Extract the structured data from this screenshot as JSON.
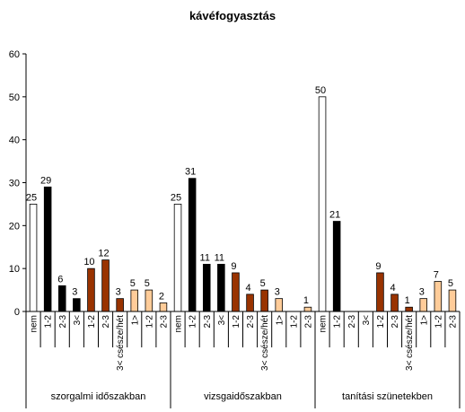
{
  "chart_data": {
    "type": "bar",
    "title": "kávéfogyasztás",
    "xlabel": "",
    "ylabel": "",
    "ylim": [
      0,
      60
    ],
    "yticks": [
      0,
      10,
      20,
      30,
      40,
      50,
      60
    ],
    "grid": false,
    "legend": "none",
    "groups": [
      {
        "label": "szorgalmi időszakban",
        "bars": [
          {
            "category": "nem",
            "value": 25,
            "color": "#ffffff"
          },
          {
            "category": "1-2",
            "value": 29,
            "color": "#000000"
          },
          {
            "category": "2-3",
            "value": 6,
            "color": "#000000"
          },
          {
            "category": "3<",
            "value": 3,
            "color": "#000000"
          },
          {
            "category": "1-2",
            "value": 10,
            "color": "#993300"
          },
          {
            "category": "2-3",
            "value": 12,
            "color": "#993300"
          },
          {
            "category": "3< csésze/hét",
            "value": 3,
            "color": "#993300"
          },
          {
            "category": "1>",
            "value": 5,
            "color": "#ffcc99"
          },
          {
            "category": "1-2",
            "value": 5,
            "color": "#ffcc99"
          },
          {
            "category": "2-3",
            "value": 2,
            "color": "#ffcc99"
          }
        ]
      },
      {
        "label": "vizsgaidőszakban",
        "bars": [
          {
            "category": "nem",
            "value": 25,
            "color": "#ffffff"
          },
          {
            "category": "1-2",
            "value": 31,
            "color": "#000000"
          },
          {
            "category": "2-3",
            "value": 11,
            "color": "#000000"
          },
          {
            "category": "3<",
            "value": 11,
            "color": "#000000"
          },
          {
            "category": "1-2",
            "value": 9,
            "color": "#993300"
          },
          {
            "category": "2-3",
            "value": 4,
            "color": "#993300"
          },
          {
            "category": "3< csésze/hét",
            "value": 5,
            "color": "#993300"
          },
          {
            "category": "1>",
            "value": 3,
            "color": "#ffcc99"
          },
          {
            "category": "1-2",
            "value": null,
            "color": "#ffcc99"
          },
          {
            "category": "2-3",
            "value": 1,
            "color": "#ffcc99"
          }
        ]
      },
      {
        "label": "tanítási szünetekben",
        "bars": [
          {
            "category": "nem",
            "value": 50,
            "color": "#ffffff"
          },
          {
            "category": "1-2",
            "value": 21,
            "color": "#000000"
          },
          {
            "category": "2-3",
            "value": null,
            "color": "#000000"
          },
          {
            "category": "3<",
            "value": null,
            "color": "#000000"
          },
          {
            "category": "1-2",
            "value": 9,
            "color": "#993300"
          },
          {
            "category": "2-3",
            "value": 4,
            "color": "#993300"
          },
          {
            "category": "3< csésze/hét",
            "value": 1,
            "color": "#993300"
          },
          {
            "category": "1>",
            "value": 3,
            "color": "#ffcc99"
          },
          {
            "category": "1-2",
            "value": 7,
            "color": "#ffcc99"
          },
          {
            "category": "2-3",
            "value": 5,
            "color": "#ffcc99"
          }
        ]
      }
    ]
  }
}
